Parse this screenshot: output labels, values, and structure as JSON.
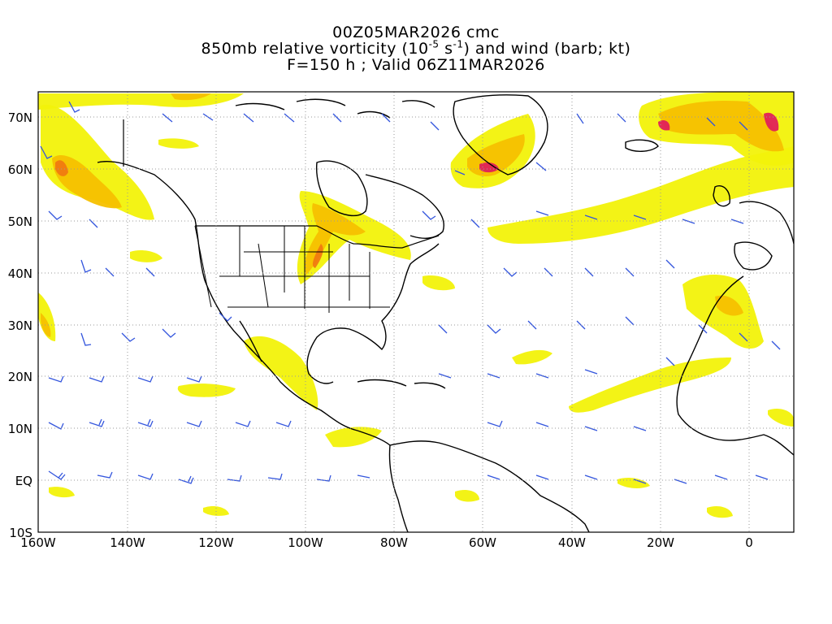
{
  "title": {
    "line1": "00Z05MAR2026 cmc",
    "line2_prefix": "850mb relative vorticity (10",
    "line2_exp1": "-5",
    "line2_mid": " s",
    "line2_exp2": "-1",
    "line2_suffix": ") and wind (barb; kt)",
    "line3": "F=150 h ; Valid 06Z11MAR2026"
  },
  "map": {
    "projection": "lat-lon",
    "lon_range": [
      -160,
      10
    ],
    "lat_range": [
      -10,
      75
    ],
    "lon_tick_labels": [
      "160W",
      "140W",
      "120W",
      "100W",
      "80W",
      "60W",
      "40W",
      "20W",
      "0"
    ],
    "lat_tick_labels": [
      "10S",
      "EQ",
      "10N",
      "20N",
      "30N",
      "40N",
      "50N",
      "60N",
      "70N"
    ],
    "grid": "dotted",
    "colors": {
      "coastline": "#000000",
      "wind_barb": "#3355dd",
      "vorticity_low": "#f2f20a",
      "vorticity_mid": "#f5c000",
      "vorticity_high": "#f07a10",
      "vorticity_peak": "#e0205a",
      "grid": "#9a9a9a"
    }
  }
}
